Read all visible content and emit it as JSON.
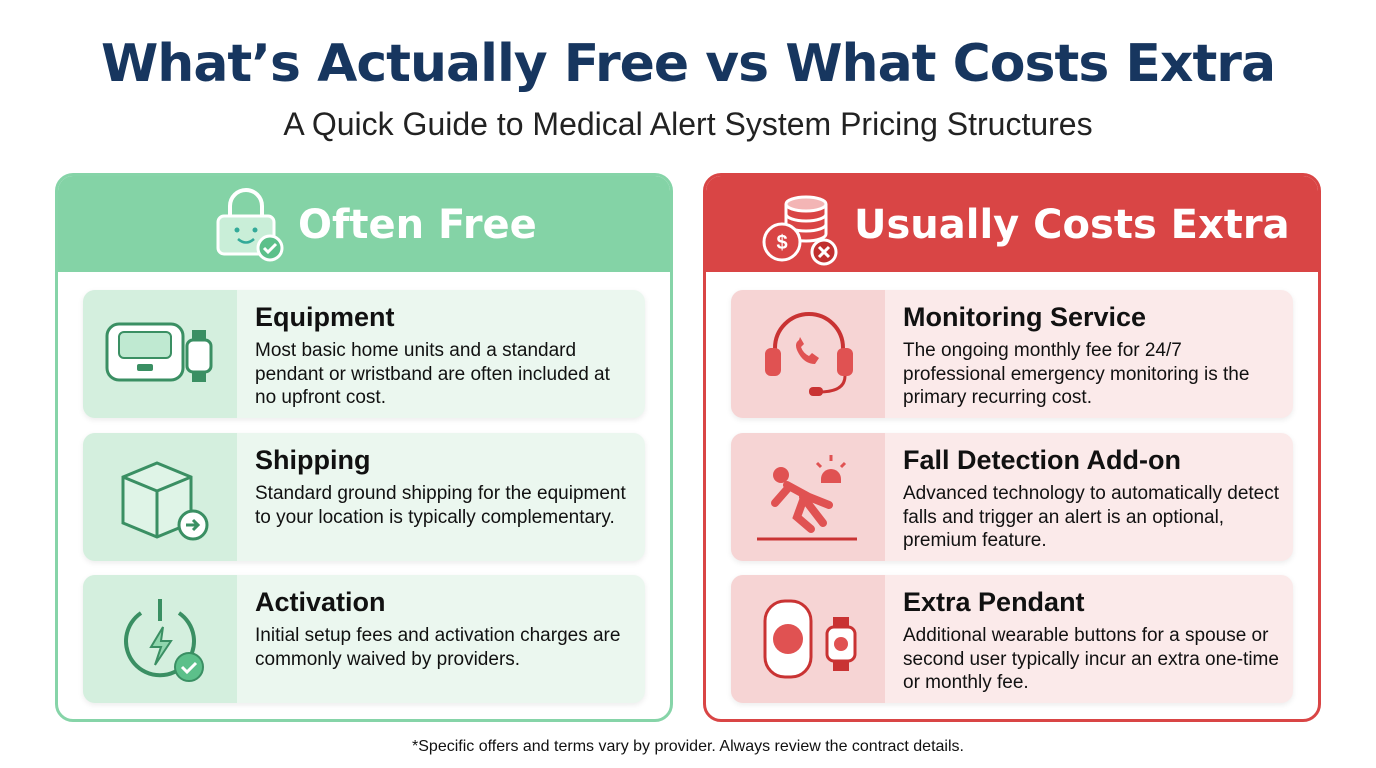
{
  "header": {
    "title": "What’s Actually Free vs What Costs Extra",
    "subtitle": "A Quick Guide to Medical Alert System Pricing Structures"
  },
  "panels": [
    {
      "title": "Often Free",
      "items": [
        {
          "title": "Equipment",
          "description": "Most basic home units and a standard pendant or wristband are often included at no upfront cost."
        },
        {
          "title": "Shipping",
          "description": "Standard ground shipping for the equipment to your location is typically complementary."
        },
        {
          "title": "Activation",
          "description": "Initial setup fees and activation charges are commonly waived by providers."
        }
      ]
    },
    {
      "title": "Usually Costs Extra",
      "items": [
        {
          "title": "Monitoring Service",
          "description": "The ongoing monthly fee for 24/7 professional emergency monitoring is the primary recurring cost."
        },
        {
          "title": "Fall Detection Add-on",
          "description": "Advanced technology to automatically detect falls and trigger an alert is an optional, premium feature."
        },
        {
          "title": "Extra Pendant",
          "description": "Additional wearable buttons for a spouse or second user typically incur an extra one-time or monthly fee."
        }
      ]
    }
  ],
  "footnote": "*Specific offers and terms vary by provider. Always review the contract details."
}
